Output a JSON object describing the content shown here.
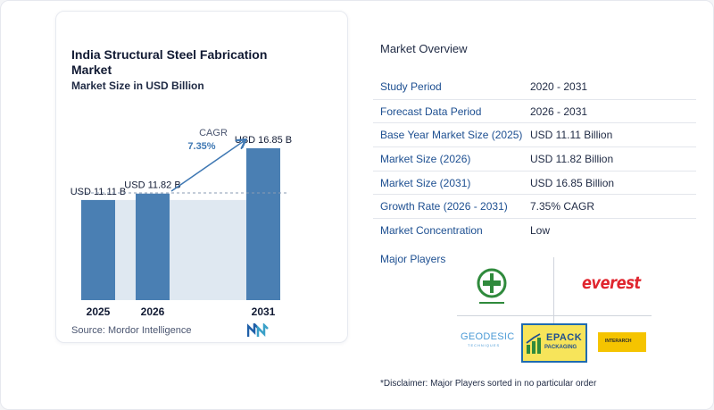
{
  "chart_data": {
    "type": "bar",
    "title": "India Structural Steel Fabrication Market",
    "subtitle": "Market Size in USD Billion",
    "categories": [
      "2025",
      "2026",
      "2031"
    ],
    "values": [
      11.11,
      11.82,
      16.85
    ],
    "data_labels": [
      "USD 11.11 B",
      "USD 11.82 B",
      "USD 16.85 B"
    ],
    "cagr_label": "CAGR",
    "cagr_value": "7.35%",
    "bar_color": "#4a7fb3",
    "shade_color": "#dfe8f1",
    "arrow_color": "#3f78b3",
    "source": "Source:  Mordor Intelligence"
  },
  "overview": {
    "title": "Market Overview",
    "rows": [
      {
        "label": "Study Period",
        "value": "2020 - 2031"
      },
      {
        "label": "Forecast Data Period",
        "value": "2026 - 2031"
      },
      {
        "label": "Base Year Market Size (2025)",
        "value": "USD 11.11 Billion"
      },
      {
        "label": "Market Size (2026)",
        "value": "USD 11.82 Billion"
      },
      {
        "label": "Market Size (2031)",
        "value": "USD 16.85 Billion"
      },
      {
        "label": "Growth Rate (2026 - 2031)",
        "value": "7.35% CAGR"
      },
      {
        "label": "Market Concentration",
        "value": "Low"
      }
    ]
  },
  "players": {
    "title": "Major Players",
    "everest": "everest",
    "geodesic": "GEODESIC",
    "geodesic_sub": "TECHNIQUES",
    "epack": "EPACK",
    "epack_sub": "PACKAGING",
    "interarch": "INTERARCH"
  },
  "disclaimer": "*Disclaimer: Major Players sorted in no particular order"
}
